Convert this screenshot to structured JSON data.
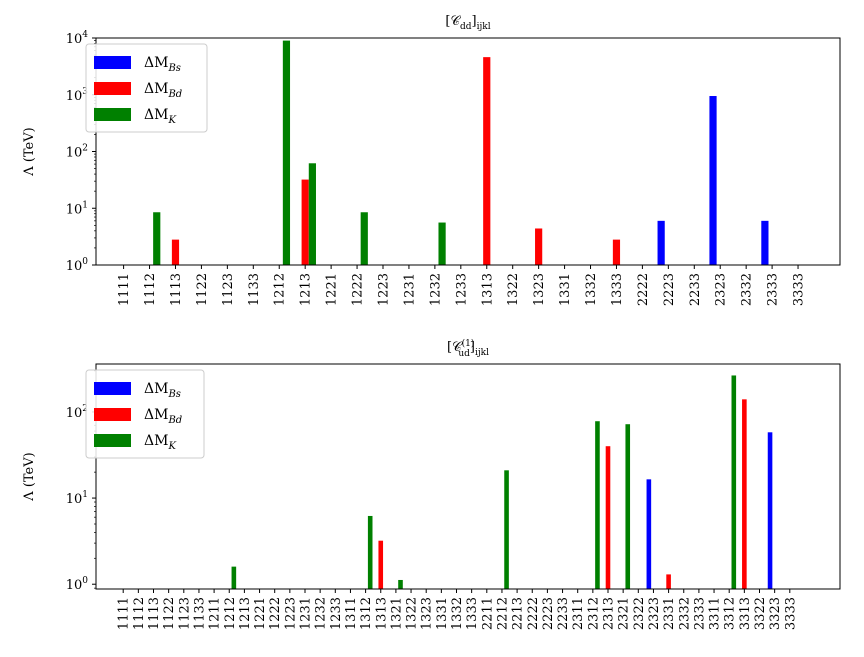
{
  "chart_data": [
    {
      "type": "bar",
      "title": "[𝒞dd]ijkl",
      "title_main": "[𝒞",
      "title_sub1": "dd",
      "title_close": "]",
      "title_sub2": "ijkl",
      "xlabel": "",
      "ylabel": "Λ (TeV)",
      "yscale": "log",
      "ylim": [
        1,
        10000
      ],
      "yticks": [
        1,
        10,
        100,
        1000,
        10000
      ],
      "ytick_labels": [
        [
          "10",
          "0"
        ],
        [
          "10",
          "1"
        ],
        [
          "10",
          "2"
        ],
        [
          "10",
          "3"
        ],
        [
          "10",
          "4"
        ]
      ],
      "legend_position": "top-left",
      "categories": [
        "1111",
        "1112",
        "1113",
        "1122",
        "1123",
        "1133",
        "1212",
        "1213",
        "1221",
        "1222",
        "1223",
        "1231",
        "1232",
        "1233",
        "1313",
        "1322",
        "1323",
        "1331",
        "1332",
        "1333",
        "2222",
        "2223",
        "2233",
        "2323",
        "2332",
        "2333",
        "3333"
      ],
      "series": [
        {
          "name": "ΔM_Bs",
          "label_main": "ΔM",
          "label_sub": "Bs",
          "color": "#0000ff",
          "offset": -1,
          "values": [
            null,
            null,
            null,
            null,
            null,
            null,
            null,
            null,
            null,
            null,
            null,
            null,
            null,
            null,
            null,
            null,
            null,
            null,
            null,
            null,
            null,
            6,
            null,
            950,
            null,
            6,
            null
          ]
        },
        {
          "name": "ΔM_Bd",
          "label_main": "ΔM",
          "label_sub": "Bd",
          "color": "#ff0000",
          "offset": 0,
          "values": [
            null,
            null,
            2.8,
            null,
            null,
            null,
            null,
            32,
            null,
            null,
            null,
            null,
            null,
            null,
            4600,
            null,
            4.4,
            null,
            null,
            2.8,
            null,
            null,
            null,
            null,
            null,
            null,
            null
          ]
        },
        {
          "name": "ΔM_K",
          "label_main": "ΔM",
          "label_sub": "K",
          "color": "#008000",
          "offset": 1,
          "values": [
            null,
            8.5,
            null,
            null,
            null,
            null,
            9000,
            62,
            null,
            8.5,
            null,
            null,
            5.6,
            null,
            null,
            null,
            null,
            null,
            null,
            null,
            null,
            null,
            null,
            null,
            null,
            null,
            null
          ]
        }
      ]
    },
    {
      "type": "bar",
      "title": "[𝒞(1)ud]ijkl",
      "title_main": "[𝒞",
      "title_sup": "(1)",
      "title_sub1": "ud",
      "title_close": "]",
      "title_sub2": "ijkl",
      "xlabel": "",
      "ylabel": "Λ (TeV)",
      "yscale": "log",
      "ylim": [
        0.88,
        360
      ],
      "yticks": [
        1,
        10,
        100
      ],
      "ytick_labels": [
        [
          "10",
          "0"
        ],
        [
          "10",
          "1"
        ],
        [
          "10",
          "2"
        ]
      ],
      "legend_position": "top-left",
      "categories": [
        "1111",
        "1112",
        "1113",
        "1122",
        "1123",
        "1133",
        "1211",
        "1212",
        "1213",
        "1221",
        "1222",
        "1223",
        "1231",
        "1232",
        "1233",
        "1311",
        "1312",
        "1313",
        "1321",
        "1322",
        "1323",
        "1331",
        "1332",
        "1333",
        "2211",
        "2212",
        "2213",
        "2222",
        "2223",
        "2233",
        "2311",
        "2312",
        "2313",
        "2321",
        "2322",
        "2323",
        "2331",
        "2332",
        "2333",
        "3311",
        "3312",
        "3313",
        "3322",
        "3323",
        "3333"
      ],
      "series": [
        {
          "name": "ΔM_Bs",
          "label_main": "ΔM",
          "label_sub": "Bs",
          "color": "#0000ff",
          "offset": -1,
          "values": [
            null,
            null,
            null,
            null,
            null,
            null,
            null,
            null,
            null,
            null,
            null,
            null,
            null,
            null,
            null,
            null,
            null,
            null,
            null,
            null,
            null,
            null,
            null,
            null,
            null,
            null,
            null,
            null,
            null,
            null,
            null,
            null,
            null,
            null,
            null,
            16.5,
            null,
            null,
            null,
            null,
            null,
            null,
            null,
            58,
            null
          ]
        },
        {
          "name": "ΔM_Bd",
          "label_main": "ΔM",
          "label_sub": "Bd",
          "color": "#ff0000",
          "offset": 0,
          "values": [
            null,
            null,
            null,
            null,
            null,
            null,
            null,
            null,
            null,
            null,
            null,
            null,
            null,
            null,
            null,
            null,
            null,
            3.2,
            null,
            null,
            null,
            null,
            null,
            null,
            null,
            null,
            null,
            null,
            null,
            null,
            null,
            null,
            40,
            null,
            null,
            null,
            1.3,
            null,
            null,
            null,
            null,
            140,
            null,
            null,
            null
          ]
        },
        {
          "name": "ΔM_K",
          "label_main": "ΔM",
          "label_sub": "K",
          "color": "#008000",
          "offset": 1,
          "values": [
            null,
            null,
            null,
            null,
            null,
            null,
            null,
            1.6,
            null,
            null,
            null,
            null,
            null,
            null,
            null,
            null,
            6.2,
            null,
            1.12,
            null,
            null,
            null,
            null,
            null,
            null,
            21,
            null,
            null,
            null,
            null,
            null,
            78,
            null,
            72,
            null,
            null,
            null,
            null,
            null,
            null,
            265,
            null,
            null,
            null,
            null
          ]
        }
      ]
    }
  ]
}
